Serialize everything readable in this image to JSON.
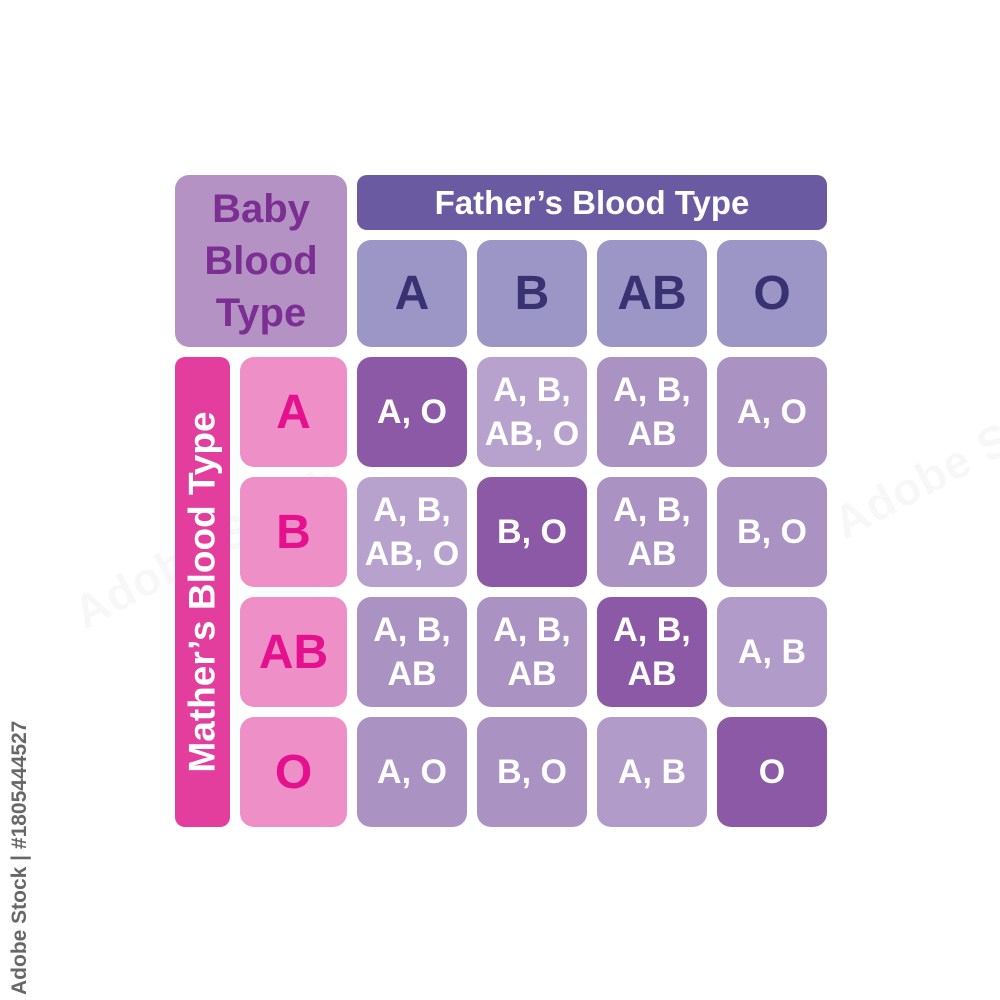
{
  "corner": {
    "text": "Baby\nBlood\nType"
  },
  "father": {
    "header": "Father’s Blood Type",
    "types": [
      "A",
      "B",
      "AB",
      "O"
    ]
  },
  "mother": {
    "header": "Mather’s Blood Type",
    "types": [
      "A",
      "B",
      "AB",
      "O"
    ]
  },
  "grid": {
    "rows": [
      [
        {
          "text": "A, O",
          "shade": "dark"
        },
        {
          "text": "A, B,\nAB, O",
          "shade": "light"
        },
        {
          "text": "A, B,\nAB",
          "shade": "medium"
        },
        {
          "text": "A, O",
          "shade": "medium"
        }
      ],
      [
        {
          "text": "A, B,\nAB, O",
          "shade": "light"
        },
        {
          "text": "B, O",
          "shade": "dark"
        },
        {
          "text": "A, B,\nAB",
          "shade": "medium"
        },
        {
          "text": "B, O",
          "shade": "medium"
        }
      ],
      [
        {
          "text": "A, B,\nAB",
          "shade": "medium"
        },
        {
          "text": "A, B,\nAB",
          "shade": "medium"
        },
        {
          "text": "A, B,\nAB",
          "shade": "dark"
        },
        {
          "text": "A, B",
          "shade": "mediumlight"
        }
      ],
      [
        {
          "text": "A, O",
          "shade": "medium"
        },
        {
          "text": "B, O",
          "shade": "medium"
        },
        {
          "text": "A, B",
          "shade": "mediumlight"
        },
        {
          "text": "O",
          "shade": "dark"
        }
      ]
    ]
  },
  "watermark": {
    "text": "Adobe Stock",
    "credit": "Adobe Stock | #1805444527"
  },
  "colors": {
    "background": "#ffffff",
    "corner_bg": "#b592c4",
    "corner_text": "#7b2f92",
    "father_header_bg": "#6a5aa2",
    "father_header_text": "#ffffff",
    "father_type_bg": "#9c96c7",
    "father_type_text": "#393272",
    "mother_header_bg": "#e33d9e",
    "mother_header_text": "#ffffff",
    "mother_type_bg": "#ef8fc7",
    "mother_type_text": "#e5108d",
    "cell_dark": "#8c59a6",
    "cell_medium": "#aa92c3",
    "cell_medium_light": "#b19bc9",
    "cell_light": "#b7a2cd",
    "cell_text": "#ffffff"
  }
}
